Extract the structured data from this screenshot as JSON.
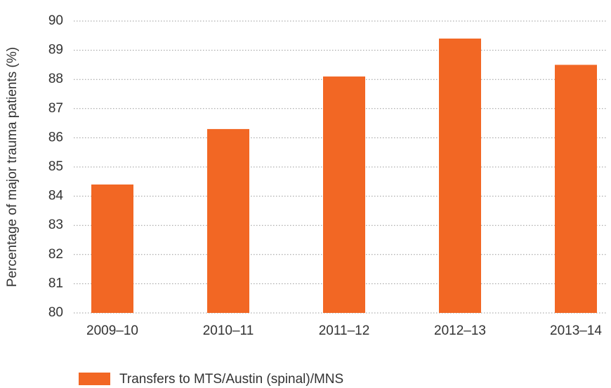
{
  "chart_data": {
    "type": "bar",
    "y_axis_label": "Percentage of major trauma patients (%)",
    "categories": [
      "2009–10",
      "2010–11",
      "2011–12",
      "2012–13",
      "2013–14"
    ],
    "series": [
      {
        "name": "Transfers to MTS/Austin (spinal)/MNS",
        "color": "#f26724",
        "values": [
          84.4,
          86.3,
          88.1,
          89.4,
          88.5
        ]
      }
    ],
    "ylim": [
      80,
      90
    ],
    "yticks": [
      80,
      81,
      82,
      83,
      84,
      85,
      86,
      87,
      88,
      89,
      90
    ],
    "grid": true
  }
}
